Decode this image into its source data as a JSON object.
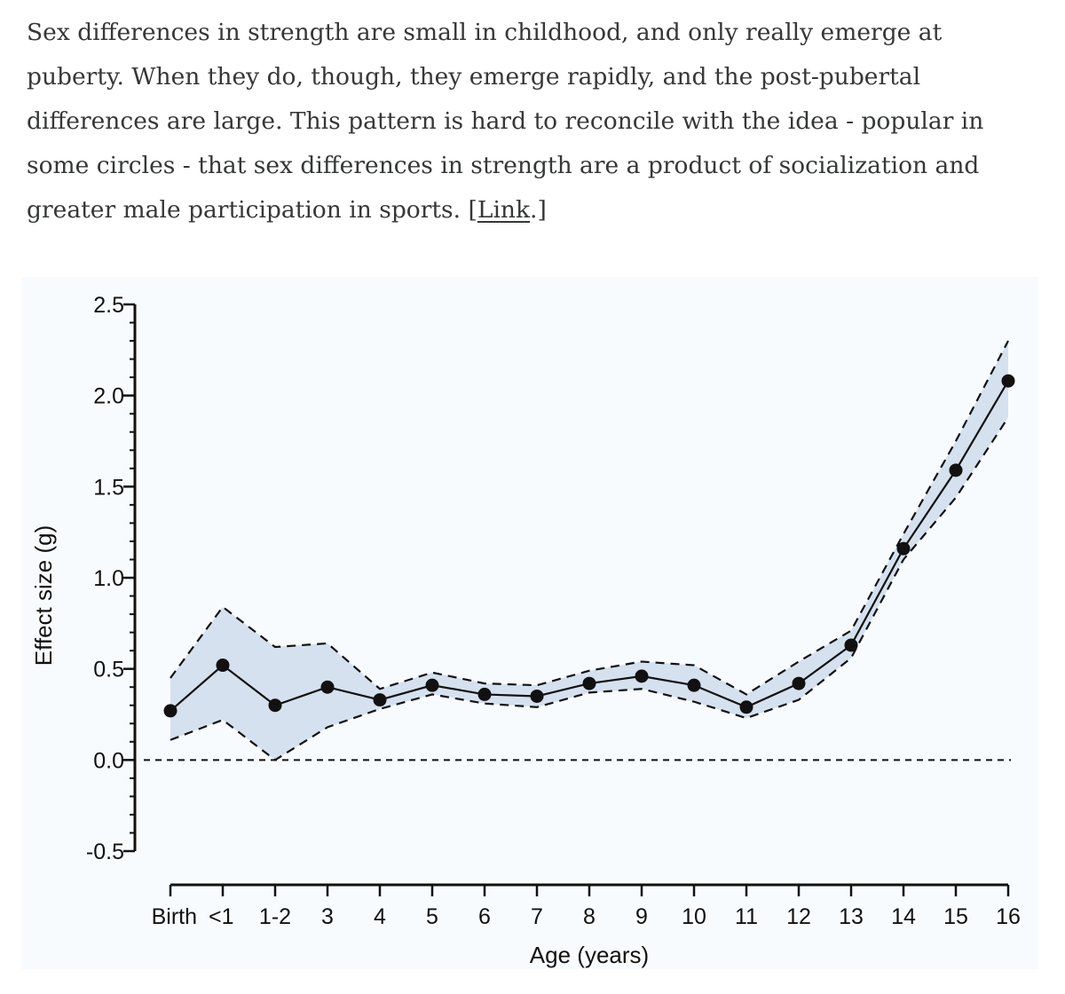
{
  "article": {
    "lines": [
      "Sex differences in strength are small in childhood, and only really emerge at",
      "puberty. When they do, though, they emerge rapidly, and the post-pubertal",
      "differences are large. This pattern is hard to reconcile with the idea - popular in",
      "some circles - that sex differences in strength are a product of socialization and"
    ],
    "last_line_before_link": "greater male participation in sports. [",
    "link_text": "Link",
    "last_line_after_link": ".]"
  },
  "colors": {
    "ci_band": "#d5e1ef",
    "line": "#111111",
    "panel_bg": "#f8fbfd"
  },
  "chart_data": {
    "type": "line",
    "title": "",
    "xlabel": "Age (years)",
    "ylabel": "Effect size (g)",
    "ylim": [
      -0.5,
      2.5
    ],
    "y_ticks": [
      {
        "value": 2.5,
        "label": "2.5"
      },
      {
        "value": 2.0,
        "label": "2.0"
      },
      {
        "value": 1.5,
        "label": "1.5"
      },
      {
        "value": 1.0,
        "label": "1.0"
      },
      {
        "value": 0.5,
        "label": "0.5"
      },
      {
        "value": 0.0,
        "label": "0.0"
      },
      {
        "value": -0.5,
        "label": "-0.5"
      }
    ],
    "y_minor_step": 0.1,
    "categories": [
      "Birth",
      "<1",
      "1-2",
      "3",
      "4",
      "5",
      "6",
      "7",
      "8",
      "9",
      "10",
      "11",
      "12",
      "13",
      "14",
      "15",
      "16"
    ],
    "series": [
      {
        "name": "Effect size",
        "values": [
          0.27,
          0.52,
          0.3,
          0.4,
          0.33,
          0.41,
          0.36,
          0.35,
          0.42,
          0.46,
          0.41,
          0.29,
          0.42,
          0.63,
          1.16,
          1.59,
          2.08
        ]
      },
      {
        "name": "Upper CI",
        "values": [
          0.45,
          0.84,
          0.62,
          0.64,
          0.39,
          0.48,
          0.42,
          0.41,
          0.49,
          0.54,
          0.52,
          0.36,
          0.54,
          0.71,
          1.24,
          1.75,
          2.3
        ]
      },
      {
        "name": "Lower CI",
        "values": [
          0.11,
          0.22,
          0.0,
          0.18,
          0.28,
          0.36,
          0.31,
          0.29,
          0.37,
          0.39,
          0.32,
          0.23,
          0.33,
          0.56,
          1.1,
          1.44,
          1.88
        ]
      }
    ],
    "reference_line": {
      "value": 0.0,
      "style": "dashed"
    },
    "grid": false,
    "legend": "none"
  }
}
